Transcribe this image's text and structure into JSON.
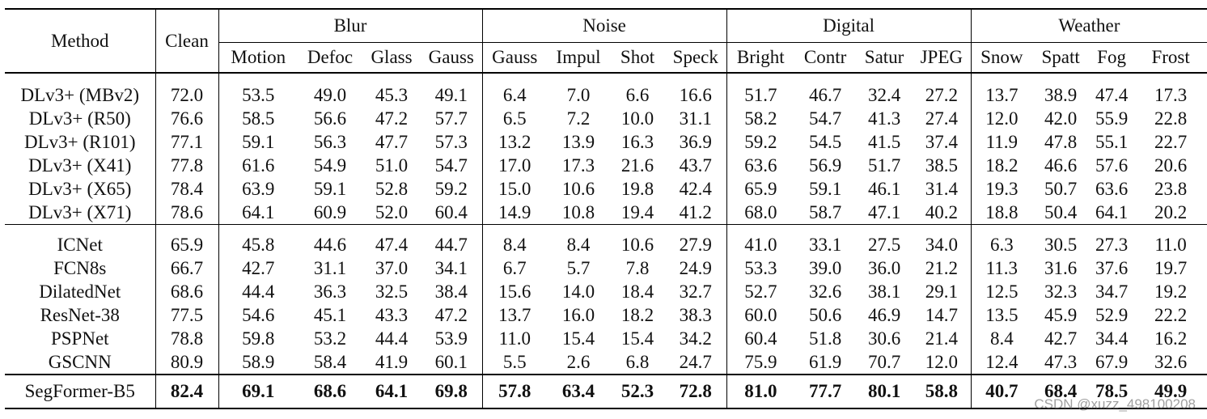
{
  "headers": {
    "method": "Method",
    "clean": "Clean",
    "groups": [
      {
        "name": "Blur",
        "cols": [
          "Motion",
          "Defoc",
          "Glass",
          "Gauss"
        ]
      },
      {
        "name": "Noise",
        "cols": [
          "Gauss",
          "Impul",
          "Shot",
          "Speck"
        ]
      },
      {
        "name": "Digital",
        "cols": [
          "Bright",
          "Contr",
          "Satur",
          "JPEG"
        ]
      },
      {
        "name": "Weather",
        "cols": [
          "Snow",
          "Spatt",
          "Fog",
          "Frost"
        ]
      }
    ]
  },
  "sections": [
    {
      "rows": [
        {
          "method": "DLv3+ (MBv2)",
          "values": [
            "72.0",
            "53.5",
            "49.0",
            "45.3",
            "49.1",
            "6.4",
            "7.0",
            "6.6",
            "16.6",
            "51.7",
            "46.7",
            "32.4",
            "27.2",
            "13.7",
            "38.9",
            "47.4",
            "17.3"
          ]
        },
        {
          "method": "DLv3+ (R50)",
          "values": [
            "76.6",
            "58.5",
            "56.6",
            "47.2",
            "57.7",
            "6.5",
            "7.2",
            "10.0",
            "31.1",
            "58.2",
            "54.7",
            "41.3",
            "27.4",
            "12.0",
            "42.0",
            "55.9",
            "22.8"
          ]
        },
        {
          "method": "DLv3+ (R101)",
          "values": [
            "77.1",
            "59.1",
            "56.3",
            "47.7",
            "57.3",
            "13.2",
            "13.9",
            "16.3",
            "36.9",
            "59.2",
            "54.5",
            "41.5",
            "37.4",
            "11.9",
            "47.8",
            "55.1",
            "22.7"
          ]
        },
        {
          "method": "DLv3+ (X41)",
          "values": [
            "77.8",
            "61.6",
            "54.9",
            "51.0",
            "54.7",
            "17.0",
            "17.3",
            "21.6",
            "43.7",
            "63.6",
            "56.9",
            "51.7",
            "38.5",
            "18.2",
            "46.6",
            "57.6",
            "20.6"
          ]
        },
        {
          "method": "DLv3+ (X65)",
          "values": [
            "78.4",
            "63.9",
            "59.1",
            "52.8",
            "59.2",
            "15.0",
            "10.6",
            "19.8",
            "42.4",
            "65.9",
            "59.1",
            "46.1",
            "31.4",
            "19.3",
            "50.7",
            "63.6",
            "23.8"
          ]
        },
        {
          "method": "DLv3+ (X71)",
          "values": [
            "78.6",
            "64.1",
            "60.9",
            "52.0",
            "60.4",
            "14.9",
            "10.8",
            "19.4",
            "41.2",
            "68.0",
            "58.7",
            "47.1",
            "40.2",
            "18.8",
            "50.4",
            "64.1",
            "20.2"
          ]
        }
      ]
    },
    {
      "rows": [
        {
          "method": "ICNet",
          "values": [
            "65.9",
            "45.8",
            "44.6",
            "47.4",
            "44.7",
            "8.4",
            "8.4",
            "10.6",
            "27.9",
            "41.0",
            "33.1",
            "27.5",
            "34.0",
            "6.3",
            "30.5",
            "27.3",
            "11.0"
          ]
        },
        {
          "method": "FCN8s",
          "values": [
            "66.7",
            "42.7",
            "31.1",
            "37.0",
            "34.1",
            "6.7",
            "5.7",
            "7.8",
            "24.9",
            "53.3",
            "39.0",
            "36.0",
            "21.2",
            "11.3",
            "31.6",
            "37.6",
            "19.7"
          ]
        },
        {
          "method": "DilatedNet",
          "values": [
            "68.6",
            "44.4",
            "36.3",
            "32.5",
            "38.4",
            "15.6",
            "14.0",
            "18.4",
            "32.7",
            "52.7",
            "32.6",
            "38.1",
            "29.1",
            "12.5",
            "32.3",
            "34.7",
            "19.2"
          ]
        },
        {
          "method": "ResNet-38",
          "values": [
            "77.5",
            "54.6",
            "45.1",
            "43.3",
            "47.2",
            "13.7",
            "16.0",
            "18.2",
            "38.3",
            "60.0",
            "50.6",
            "46.9",
            "14.7",
            "13.5",
            "45.9",
            "52.9",
            "22.2"
          ]
        },
        {
          "method": "PSPNet",
          "values": [
            "78.8",
            "59.8",
            "53.2",
            "44.4",
            "53.9",
            "11.0",
            "15.4",
            "15.4",
            "34.2",
            "60.4",
            "51.8",
            "30.6",
            "21.4",
            "8.4",
            "42.7",
            "34.4",
            "16.2"
          ]
        },
        {
          "method": "GSCNN",
          "values": [
            "80.9",
            "58.9",
            "58.4",
            "41.9",
            "60.1",
            "5.5",
            "2.6",
            "6.8",
            "24.7",
            "75.9",
            "61.9",
            "70.7",
            "12.0",
            "12.4",
            "47.3",
            "67.9",
            "32.6"
          ]
        }
      ]
    },
    {
      "bold": true,
      "rows": [
        {
          "method": "SegFormer-B5",
          "values": [
            "82.4",
            "69.1",
            "68.6",
            "64.1",
            "69.8",
            "57.8",
            "63.4",
            "52.3",
            "72.8",
            "81.0",
            "77.7",
            "80.1",
            "58.8",
            "40.7",
            "68.4",
            "78.5",
            "49.9"
          ]
        }
      ]
    }
  ],
  "watermark": "CSDN @xuzz_498100208"
}
